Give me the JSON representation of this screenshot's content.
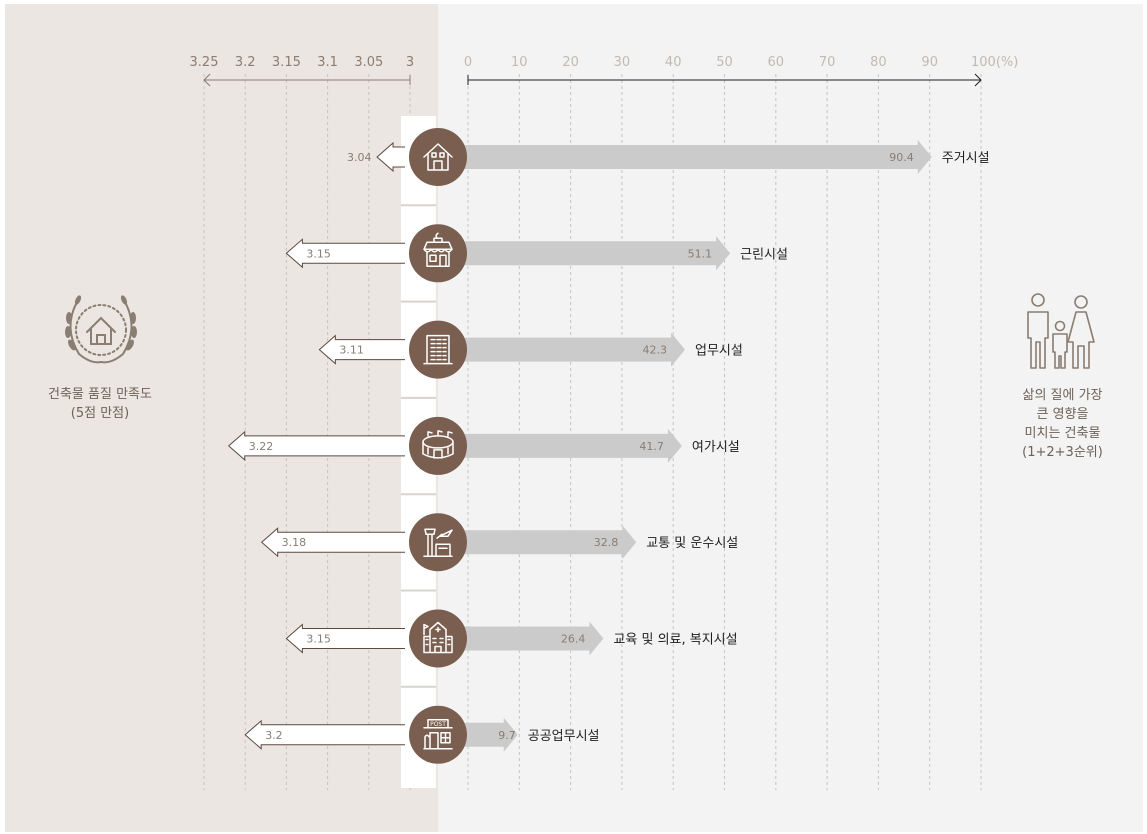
{
  "chart_data": {
    "type": "bar",
    "categories": [
      "주거시설",
      "근린시설",
      "업무시설",
      "여가시설",
      "교통 및 운수시설",
      "교육 및 의료, 복지시설",
      "공공업무시설"
    ],
    "series": [
      {
        "values": [
          3.04,
          3.15,
          3.11,
          3.22,
          3.18,
          3.15,
          3.2
        ]
      },
      {
        "values": [
          90.4,
          51.1,
          42.3,
          41.7,
          32.8,
          26.4,
          9.7
        ]
      }
    ],
    "left_axis": {
      "ticks": [
        "3.25",
        "3.2",
        "3.15",
        "3.1",
        "3.05",
        "3"
      ],
      "range": [
        3,
        3.25
      ],
      "direction": "leftward",
      "title": "건축물 품질 만족도",
      "subtitle": "(5점 만점)"
    },
    "right_axis": {
      "ticks": [
        "0",
        "10",
        "20",
        "30",
        "40",
        "50",
        "60",
        "70",
        "80",
        "90",
        "100(%)"
      ],
      "range": [
        0,
        100
      ],
      "title": "삶의 질에 가장 큰 영향을 미치는 건축물",
      "subtitle": "(1+2+3순위)"
    },
    "grid": true,
    "colors": {
      "left_panel": "#ebe6e1",
      "right_panel": "#f2f3f2",
      "circle": "#7a5e4f",
      "bar": "#cbcbcb",
      "outline": "#5b4a40",
      "text": "#8a7d72"
    },
    "icons": [
      "house-icon",
      "shop-icon",
      "office-building-icon",
      "stadium-icon",
      "airport-icon",
      "hospital-icon",
      "post-office-icon"
    ]
  },
  "left_caption": [
    "건축물 품질 만족도",
    "(5점 만점)"
  ],
  "right_caption": [
    "삶의 질에 가장",
    "큰 영향을",
    "미치는 건축물",
    "(1+2+3순위)"
  ]
}
